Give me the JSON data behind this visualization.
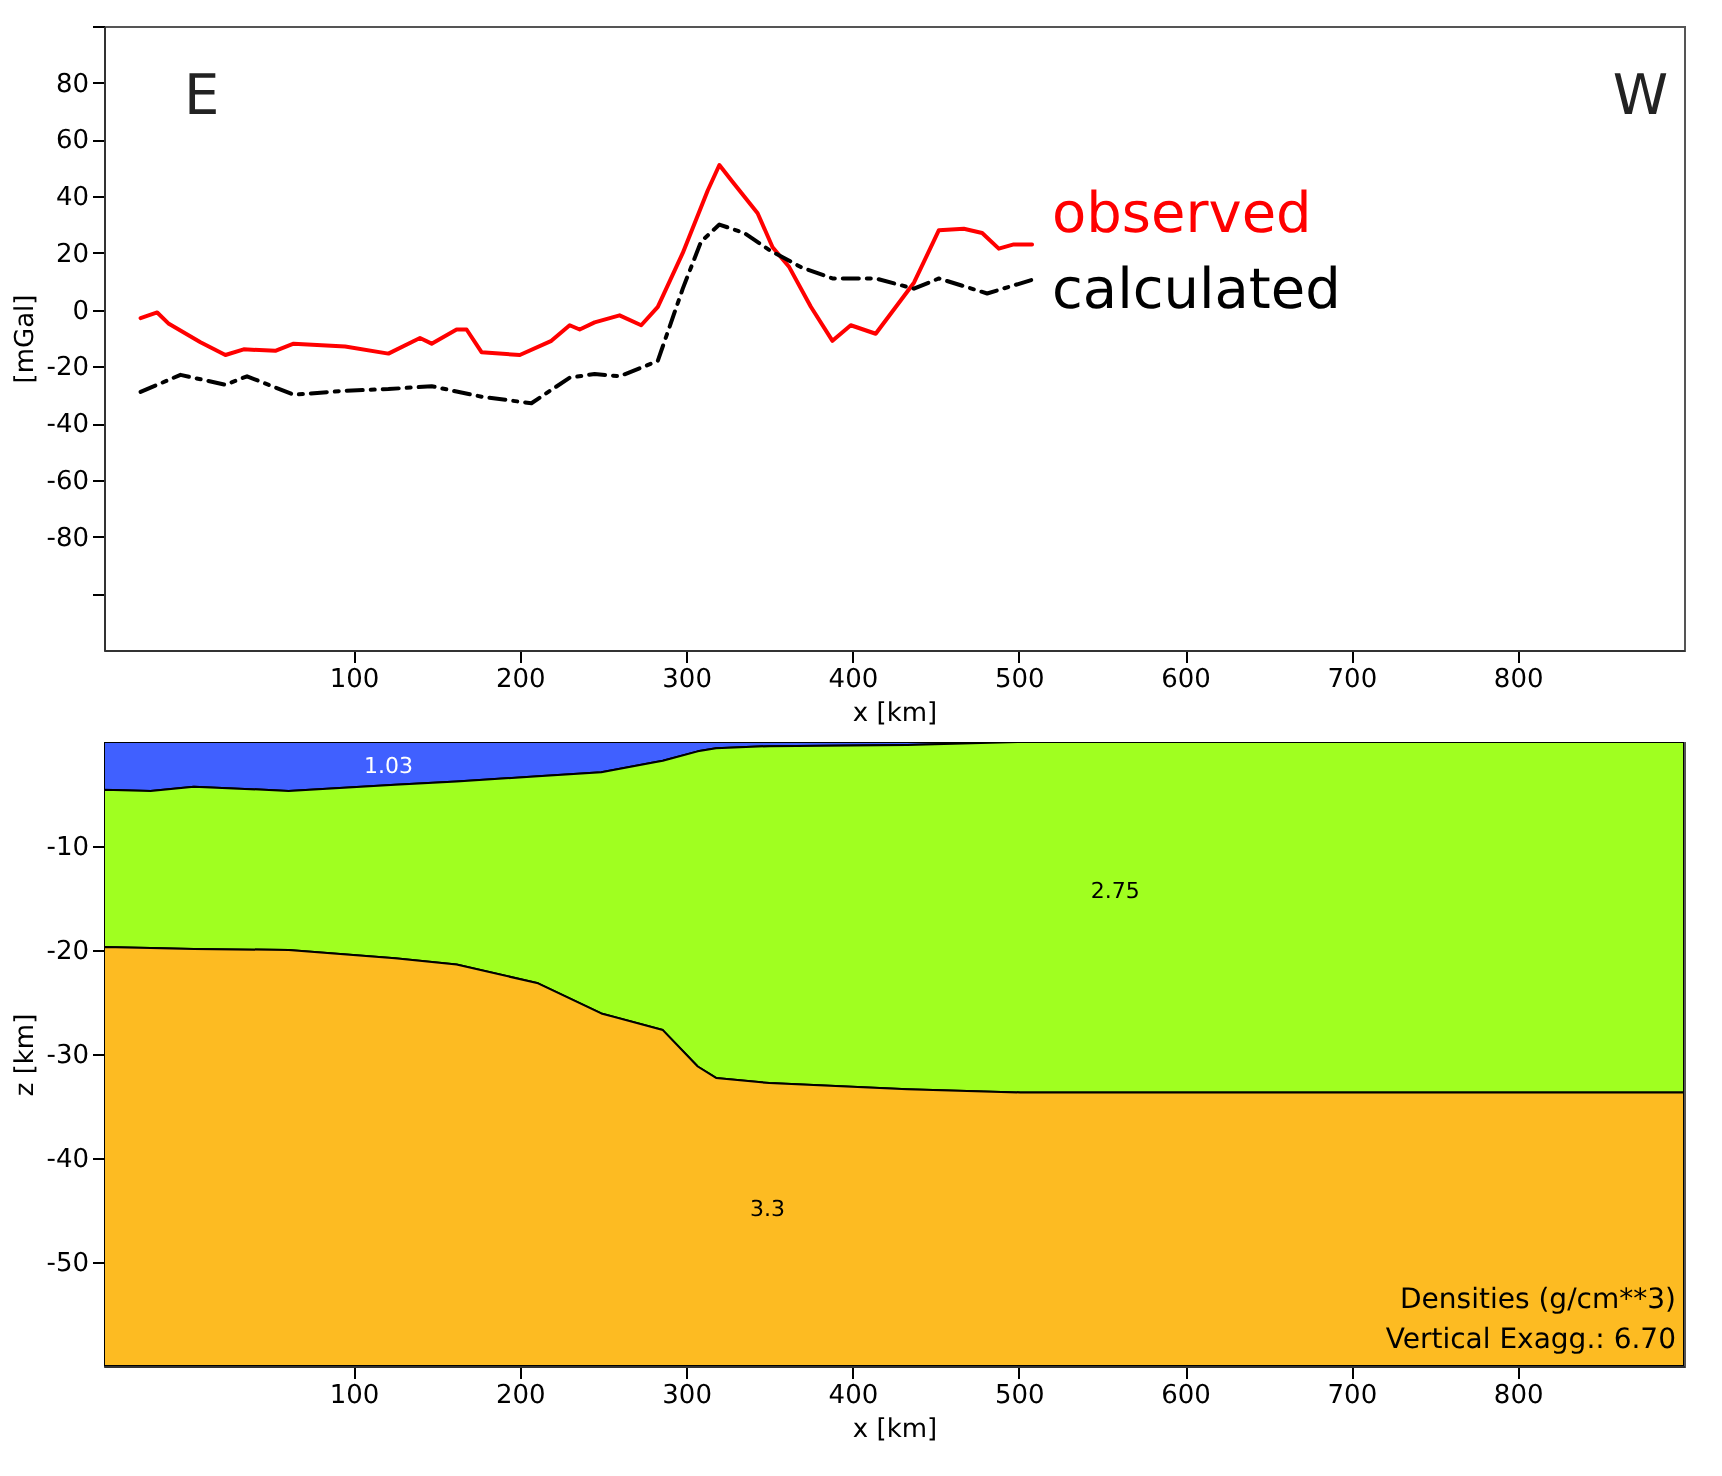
{
  "chart_data": [
    {
      "type": "line",
      "ylabel": "[mGal]",
      "xlabel": "x [km]",
      "xlim": [
        -50,
        900
      ],
      "ylim": [
        -120,
        100
      ],
      "xticks": [
        100,
        200,
        300,
        400,
        500,
        600,
        700,
        800
      ],
      "yticks": [
        {
          "value": 100,
          "label": null
        },
        80,
        60,
        40,
        20,
        0,
        -20,
        -40,
        -60,
        -80,
        {
          "value": -100,
          "label": null
        }
      ],
      "grid": false,
      "marker": "none",
      "annotations": [
        "E",
        "W"
      ],
      "series": [
        {
          "name": "observed",
          "color": "#ff0000",
          "line_style": "solid",
          "x": [
            -28,
            -18,
            -11,
            8,
            23,
            34,
            53,
            64,
            95,
            121,
            140,
            147,
            162,
            168,
            177,
            200,
            219,
            230,
            236,
            245,
            260,
            273,
            283,
            298,
            313,
            320,
            328,
            343,
            352,
            362,
            375,
            388,
            399,
            414,
            437,
            452,
            467,
            478,
            488,
            497,
            508
          ],
          "values": [
            -3,
            -1,
            -5,
            -11.5,
            -16,
            -14,
            -14.5,
            -12,
            -13,
            -15.5,
            -10,
            -12,
            -7,
            -7,
            -15,
            -16,
            -11,
            -5.5,
            -7,
            -4.5,
            -2,
            -5.5,
            1,
            20,
            42,
            51,
            45,
            34,
            22,
            15,
            1,
            -11,
            -5.5,
            -8.5,
            9.5,
            28,
            28.5,
            27,
            21.5,
            23,
            23
          ]
        },
        {
          "name": "calculated",
          "color": "#000000",
          "line_style": "dashed",
          "x": [
            -28,
            -4,
            23,
            36,
            64,
            95,
            121,
            147,
            177,
            207,
            230,
            245,
            260,
            275,
            283,
            298,
            309,
            320,
            335,
            350,
            369,
            388,
            414,
            437,
            452,
            481,
            508
          ],
          "values": [
            -29,
            -23,
            -26.5,
            -23.5,
            -30,
            -28.6,
            -28,
            -27,
            -30.7,
            -33,
            -24,
            -22.7,
            -23.5,
            -20,
            -18,
            7.4,
            24,
            30,
            27,
            21,
            15,
            11,
            11,
            7.4,
            11,
            5.7,
            10.5
          ]
        }
      ]
    },
    {
      "type": "area",
      "stacked": true,
      "ylabel": "z [km]",
      "xlabel": "x [km]",
      "xlim": [
        -50,
        900
      ],
      "ylim": [
        -60,
        0
      ],
      "xticks": [
        100,
        200,
        300,
        400,
        500,
        600,
        700,
        800
      ],
      "yticks": [
        -10,
        -20,
        -30,
        -40,
        -50
      ],
      "grid": false,
      "x": [
        -50,
        -22,
        4,
        61,
        125,
        162,
        211,
        249,
        286,
        307,
        318,
        350,
        433,
        501,
        900
      ],
      "annotations": [
        "Densities (g/cm**3)",
        "Vertical Exagg.:   6.70"
      ],
      "series": [
        {
          "name": "1.03",
          "color": "#4060ff",
          "values": [
            -4.6,
            -4.7,
            -4.3,
            -4.7,
            -4.1,
            -3.8,
            -3.3,
            -2.9,
            -1.8,
            -0.9,
            -0.6,
            -0.4,
            -0.3,
            0,
            0
          ]
        },
        {
          "name": "2.75",
          "color": "#a0ff20",
          "values": [
            -15.1,
            -15.1,
            -15.6,
            -15.3,
            -16.7,
            -17.6,
            -19.9,
            -23.2,
            -25.9,
            -30.3,
            -31.7,
            -32.4,
            -33.1,
            -33.7,
            -33.7
          ]
        },
        {
          "name": "3.3",
          "color": "#fdbb22",
          "values": [
            -40.3,
            -40.2,
            -40.1,
            -40,
            -39.2,
            -38.6,
            -36.8,
            -33.9,
            -32.3,
            -28.8,
            -27.7,
            -27.2,
            -26.6,
            -26.3,
            -26.3
          ]
        }
      ]
    }
  ]
}
